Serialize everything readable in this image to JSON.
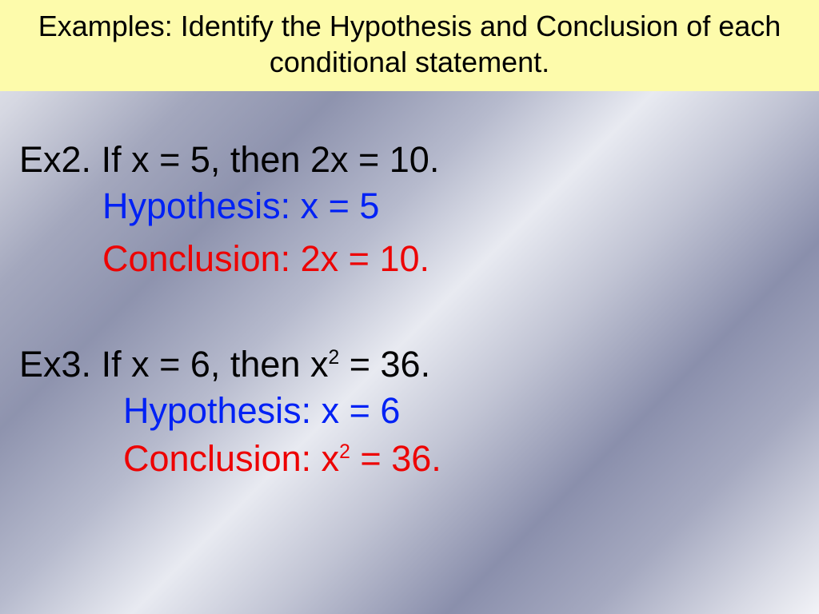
{
  "title_bar": {
    "text": "Examples: Identify the Hypothesis and Conclusion of each conditional statement.",
    "background_color": "#fdfbab",
    "text_color": "#000000",
    "font_size_pt": 36
  },
  "colors": {
    "hypothesis": "#0021f5",
    "conclusion": "#ed0202",
    "statement": "#000000"
  },
  "examples": [
    {
      "label": "Ex2.",
      "statement_html": "If x = 5, then 2x = 10.",
      "hypothesis_html": "Hypothesis: x = 5",
      "conclusion_html": "Conclusion: 2x = 10."
    },
    {
      "label": "Ex3.",
      "statement_html": "If x = 6, then x<sup>2</sup> = 36.",
      "hypothesis_html": "Hypothesis: x = 6",
      "conclusion_html": "Conclusion: x<sup>2</sup> = 36."
    }
  ],
  "typography": {
    "font_family": "Comic Sans MS",
    "body_font_size_pt": 45
  }
}
